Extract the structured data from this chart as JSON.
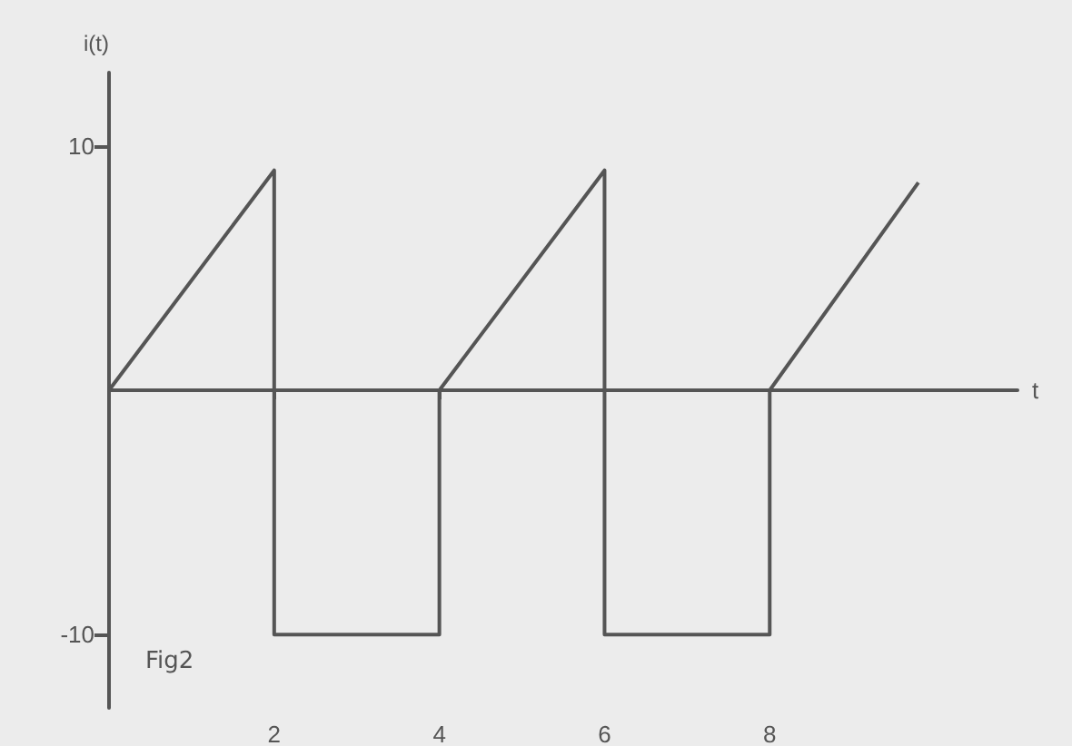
{
  "chart_data": {
    "type": "line",
    "xlabel": "t",
    "ylabel": "i(t)",
    "annotations": [
      "Fig2"
    ],
    "x": [
      0,
      2,
      2,
      4,
      4,
      6,
      6,
      8,
      8,
      9.8
    ],
    "series": [
      {
        "color": "#555555",
        "values": [
          0,
          9,
          -10,
          -10,
          0,
          9,
          -10,
          -10,
          0,
          8.5
        ]
      }
    ],
    "xlim": [
      0,
      11
    ],
    "xticks": [
      2,
      4,
      6,
      8
    ],
    "ylim": [
      -13,
      13
    ],
    "yticks": [
      10,
      -10
    ],
    "grid": false,
    "marker": "none",
    "line_style": "solid"
  }
}
